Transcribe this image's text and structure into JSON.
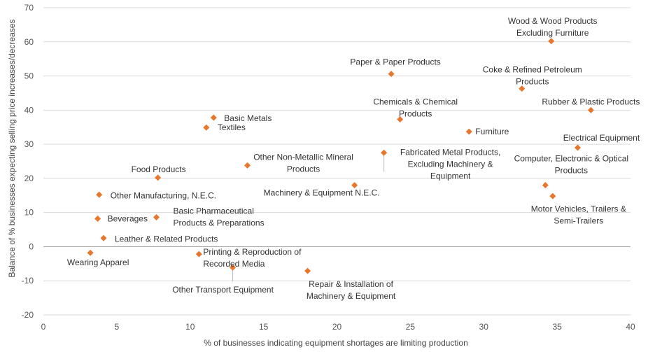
{
  "chart_data": {
    "type": "scatter",
    "xlabel": "% of businesses indicating equipment shortages are limiting production",
    "ylabel": "Balance of % businesses expecting selling price increases/decreases",
    "xlim": [
      0,
      40
    ],
    "ylim": [
      -20,
      70
    ],
    "x_ticks": [
      "0",
      "5",
      "10",
      "15",
      "20",
      "25",
      "30",
      "35",
      "40"
    ],
    "y_ticks": [
      "70",
      "60",
      "50",
      "40",
      "30",
      "20",
      "10",
      "0",
      "-10",
      "-20"
    ],
    "grid": "horizontal",
    "marker_color": "#e8772e",
    "leader_line_color": "#bbbbbb",
    "points": [
      {
        "label": "Wood & Wood Products\nExcluding Furniture",
        "x": 34.6,
        "y": 60.2
      },
      {
        "label": "Paper & Paper Products",
        "x": 23.7,
        "y": 50.6
      },
      {
        "label": "Coke & Refined Petroleum\nProducts",
        "x": 32.6,
        "y": 46.3
      },
      {
        "label": "Rubber & Plastic Products",
        "x": 37.3,
        "y": 40.0
      },
      {
        "label": "Chemicals & Chemical\nProducts",
        "x": 24.3,
        "y": 37.3
      },
      {
        "label": "Basic Metals",
        "x": 11.6,
        "y": 37.8
      },
      {
        "label": "Textiles",
        "x": 11.1,
        "y": 34.9
      },
      {
        "label": "Furniture",
        "x": 29.0,
        "y": 33.7
      },
      {
        "label": "Electrical Equipment",
        "x": 36.4,
        "y": 29.0
      },
      {
        "label": "Fabricated Metal Products,\nExcluding Machinery &\nEquipment",
        "x": 23.2,
        "y": 27.5
      },
      {
        "label": "Other Non-Metallic Mineral\nProducts",
        "x": 13.9,
        "y": 23.8
      },
      {
        "label": "Food Products",
        "x": 7.8,
        "y": 20.2
      },
      {
        "label": "Machinery & Equipment N.E.C.",
        "x": 21.2,
        "y": 18.0
      },
      {
        "label": "Computer, Electronic & Optical\nProducts",
        "x": 34.2,
        "y": 18.0
      },
      {
        "label": "Other Manufacturing, N.E.C.",
        "x": 3.8,
        "y": 15.2
      },
      {
        "label": "Motor Vehicles, Trailers &\nSemi-Trailers",
        "x": 34.7,
        "y": 14.8
      },
      {
        "label": "Beverages",
        "x": 3.7,
        "y": 8.2
      },
      {
        "label": "Basic Pharmaceutical\nProducts & Preparations",
        "x": 7.7,
        "y": 8.6
      },
      {
        "label": "Leather & Related Products",
        "x": 4.1,
        "y": 2.5
      },
      {
        "label": "Wearing Apparel",
        "x": 3.2,
        "y": -1.8
      },
      {
        "label": "Printing & Reproduction of\nRecorded Media",
        "x": 10.6,
        "y": -2.2
      },
      {
        "label": "Other Transport Equipment",
        "x": 12.9,
        "y": -6.1
      },
      {
        "label": "Repair & Installation of\nMachinery & Equipment",
        "x": 18.0,
        "y": -7.1
      }
    ]
  }
}
